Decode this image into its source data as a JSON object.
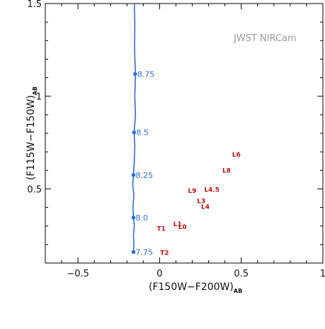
{
  "chart_data": {
    "type": "scatter",
    "annotation": "JWST NIRCam",
    "xlabel": {
      "main": "(F150W−F200W)",
      "sub": "AB"
    },
    "ylabel": {
      "main": "(F115W−F150W)",
      "sub": "AB"
    },
    "xlim": [
      -0.7,
      1.0
    ],
    "ylim": [
      0.1,
      1.5
    ],
    "xticks": [
      {
        "value": -0.5,
        "label": "−0.5"
      },
      {
        "value": 0,
        "label": "0"
      },
      {
        "value": 0.5,
        "label": "0.5"
      },
      {
        "value": 1,
        "label": "1"
      }
    ],
    "yticks": [
      {
        "value": 0.5,
        "label": "0.5"
      },
      {
        "value": 1,
        "label": "1"
      },
      {
        "value": 1.5,
        "label": "1.5"
      }
    ],
    "track": {
      "color": "#2f6fd0",
      "line": [
        {
          "x": -0.16,
          "y": 0.16
        },
        {
          "x": -0.158,
          "y": 0.2
        },
        {
          "x": -0.16,
          "y": 0.25
        },
        {
          "x": -0.155,
          "y": 0.3
        },
        {
          "x": -0.16,
          "y": 0.345
        },
        {
          "x": -0.163,
          "y": 0.4
        },
        {
          "x": -0.158,
          "y": 0.47
        },
        {
          "x": -0.165,
          "y": 0.52
        },
        {
          "x": -0.16,
          "y": 0.575
        },
        {
          "x": -0.155,
          "y": 0.65
        },
        {
          "x": -0.152,
          "y": 0.73
        },
        {
          "x": -0.156,
          "y": 0.8
        },
        {
          "x": -0.148,
          "y": 0.9
        },
        {
          "x": -0.152,
          "y": 1.0
        },
        {
          "x": -0.148,
          "y": 1.12
        },
        {
          "x": -0.153,
          "y": 1.25
        },
        {
          "x": -0.152,
          "y": 1.4
        },
        {
          "x": -0.155,
          "y": 1.5
        }
      ],
      "points": [
        {
          "x": -0.16,
          "y": 0.16,
          "label": "7.75"
        },
        {
          "x": -0.16,
          "y": 0.345,
          "label": "8.0"
        },
        {
          "x": -0.16,
          "y": 0.575,
          "label": "8.25"
        },
        {
          "x": -0.156,
          "y": 0.805,
          "label": "8.5"
        },
        {
          "x": -0.15,
          "y": 1.12,
          "label": "8.75"
        }
      ]
    },
    "objects": {
      "color": "#b81414",
      "points": [
        {
          "x": 0.47,
          "y": 0.685,
          "label": "L6"
        },
        {
          "x": 0.41,
          "y": 0.6,
          "label": "L8"
        },
        {
          "x": 0.2,
          "y": 0.49,
          "label": "L9"
        },
        {
          "x": 0.32,
          "y": 0.495,
          "label": "L4.5"
        },
        {
          "x": 0.255,
          "y": 0.435,
          "label": "L3"
        },
        {
          "x": 0.28,
          "y": 0.405,
          "label": "L4"
        },
        {
          "x": 0.11,
          "y": 0.31,
          "label": "L1"
        },
        {
          "x": 0.14,
          "y": 0.295,
          "label": "L0"
        },
        {
          "x": 0.01,
          "y": 0.285,
          "label": "T1"
        },
        {
          "x": 0.03,
          "y": 0.155,
          "label": "T2"
        }
      ]
    }
  }
}
